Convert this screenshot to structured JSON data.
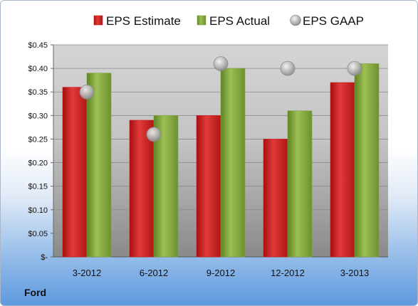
{
  "company_label": "Ford",
  "colors": {
    "estimate": "#cc1f1f",
    "actual": "#7fa33a",
    "gaap": "#b8b8b8"
  },
  "chart_data": {
    "type": "bar",
    "title": "",
    "xlabel": "",
    "ylabel": "",
    "categories": [
      "3-2012",
      "6-2012",
      "9-2012",
      "12-2012",
      "3-2013"
    ],
    "series": [
      {
        "name": "EPS Estimate",
        "kind": "bar",
        "values": [
          0.36,
          0.29,
          0.3,
          0.25,
          0.37
        ]
      },
      {
        "name": "EPS Actual",
        "kind": "bar",
        "values": [
          0.39,
          0.3,
          0.4,
          0.31,
          0.41
        ]
      },
      {
        "name": "EPS GAAP",
        "kind": "marker",
        "values": [
          0.35,
          0.26,
          0.41,
          0.4,
          0.4
        ]
      }
    ],
    "ylim": [
      0,
      0.45
    ],
    "yticks": [
      0,
      0.05,
      0.1,
      0.15,
      0.2,
      0.25,
      0.3,
      0.35,
      0.4,
      0.45
    ],
    "ytick_labels": [
      "$-",
      "$0.05",
      "$0.10",
      "$0.15",
      "$0.20",
      "$0.25",
      "$0.30",
      "$0.35",
      "$0.40",
      "$0.45"
    ],
    "grid": true,
    "legend_position": "top"
  }
}
